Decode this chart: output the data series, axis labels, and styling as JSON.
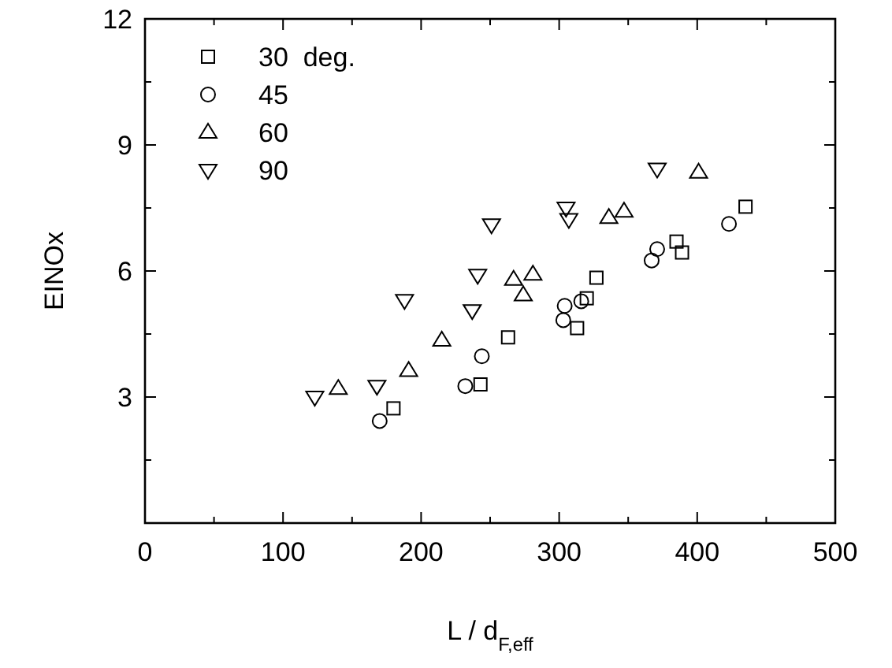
{
  "chart_data": {
    "type": "scatter",
    "xlabel": "L / d$_{F,eff}$",
    "ylabel": "EINOx",
    "xlim": [
      0,
      500
    ],
    "ylim": [
      0,
      12
    ],
    "xticks": [
      0,
      {
        "value": 50,
        "label": null
      },
      100,
      {
        "value": 150,
        "label": null
      },
      200,
      {
        "value": 250,
        "label": null
      },
      300,
      {
        "value": 350,
        "label": null
      },
      400,
      {
        "value": 450,
        "label": null
      },
      500
    ],
    "yticks": [
      {
        "value": 0,
        "label": null
      },
      {
        "value": 1.5,
        "label": null
      },
      3,
      {
        "value": 4.5,
        "label": null
      },
      6,
      {
        "value": 7.5,
        "label": null
      },
      9,
      {
        "value": 10.5,
        "label": null
      },
      12
    ],
    "grid": false,
    "legend": "top left",
    "series": [
      {
        "name": "30  deg.",
        "color": "#000000",
        "marker": "square",
        "x": [
          180,
          243,
          263,
          313,
          320,
          327,
          385,
          389,
          435
        ],
        "values": [
          2.73,
          3.3,
          4.42,
          4.64,
          5.35,
          5.84,
          6.7,
          6.44,
          7.53
        ]
      },
      {
        "name": "45",
        "color": "#000000",
        "marker": "circle",
        "x": [
          170,
          232,
          244,
          304,
          303,
          316,
          371,
          367,
          423
        ],
        "values": [
          2.43,
          3.26,
          3.97,
          5.17,
          4.83,
          5.28,
          6.52,
          6.25,
          7.12
        ]
      },
      {
        "name": "60",
        "color": "#000000",
        "marker": "triangle",
        "x": [
          140,
          191,
          215,
          267,
          281,
          274,
          336,
          347,
          401
        ],
        "values": [
          3.2,
          3.63,
          4.35,
          5.8,
          5.92,
          5.43,
          7.27,
          7.42,
          8.35
        ]
      },
      {
        "name": "90",
        "color": "#000000",
        "marker": "triangle-down",
        "x": [
          123,
          168,
          188,
          237,
          241,
          251,
          305,
          307,
          371
        ],
        "values": [
          3.0,
          3.26,
          5.3,
          5.06,
          5.9,
          7.1,
          7.5,
          7.23,
          8.43
        ]
      }
    ]
  }
}
